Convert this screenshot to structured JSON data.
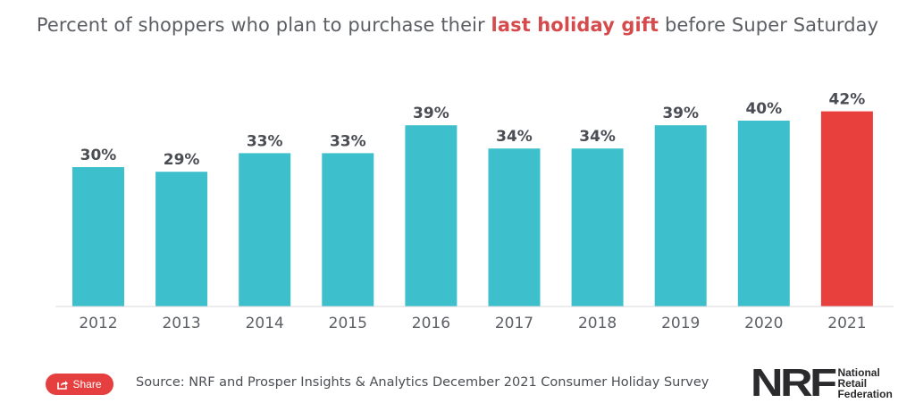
{
  "title": {
    "prefix": "Percent of shoppers who plan to purchase their ",
    "highlight": "last holiday gift",
    "suffix": " before Super Saturday"
  },
  "colors": {
    "bar": "#3dbfcc",
    "highlight_bar": "#e8403d",
    "highlight_text": "#d64a4b",
    "baseline": "#d9dadc"
  },
  "chart_data": {
    "type": "bar",
    "title": "Percent of shoppers who plan to purchase their last holiday gift before Super Saturday",
    "categories": [
      "2012",
      "2013",
      "2014",
      "2015",
      "2016",
      "2017",
      "2018",
      "2019",
      "2020",
      "2021"
    ],
    "values": [
      30,
      29,
      33,
      33,
      39,
      34,
      34,
      39,
      40,
      42
    ],
    "value_labels": [
      "30%",
      "29%",
      "33%",
      "33%",
      "39%",
      "34%",
      "34%",
      "39%",
      "40%",
      "42%"
    ],
    "highlight_category": "2021",
    "xlabel": "",
    "ylabel": "",
    "ylim": [
      0,
      45
    ],
    "grid": false,
    "legend": "none"
  },
  "footer": {
    "share_label": "Share",
    "share_icon": "share-icon",
    "source": "Source: NRF and Prosper Insights & Analytics December 2021 Consumer Holiday Survey",
    "logo_mark": "NRF",
    "logo_lines": [
      "National",
      "Retail",
      "Federation"
    ]
  }
}
